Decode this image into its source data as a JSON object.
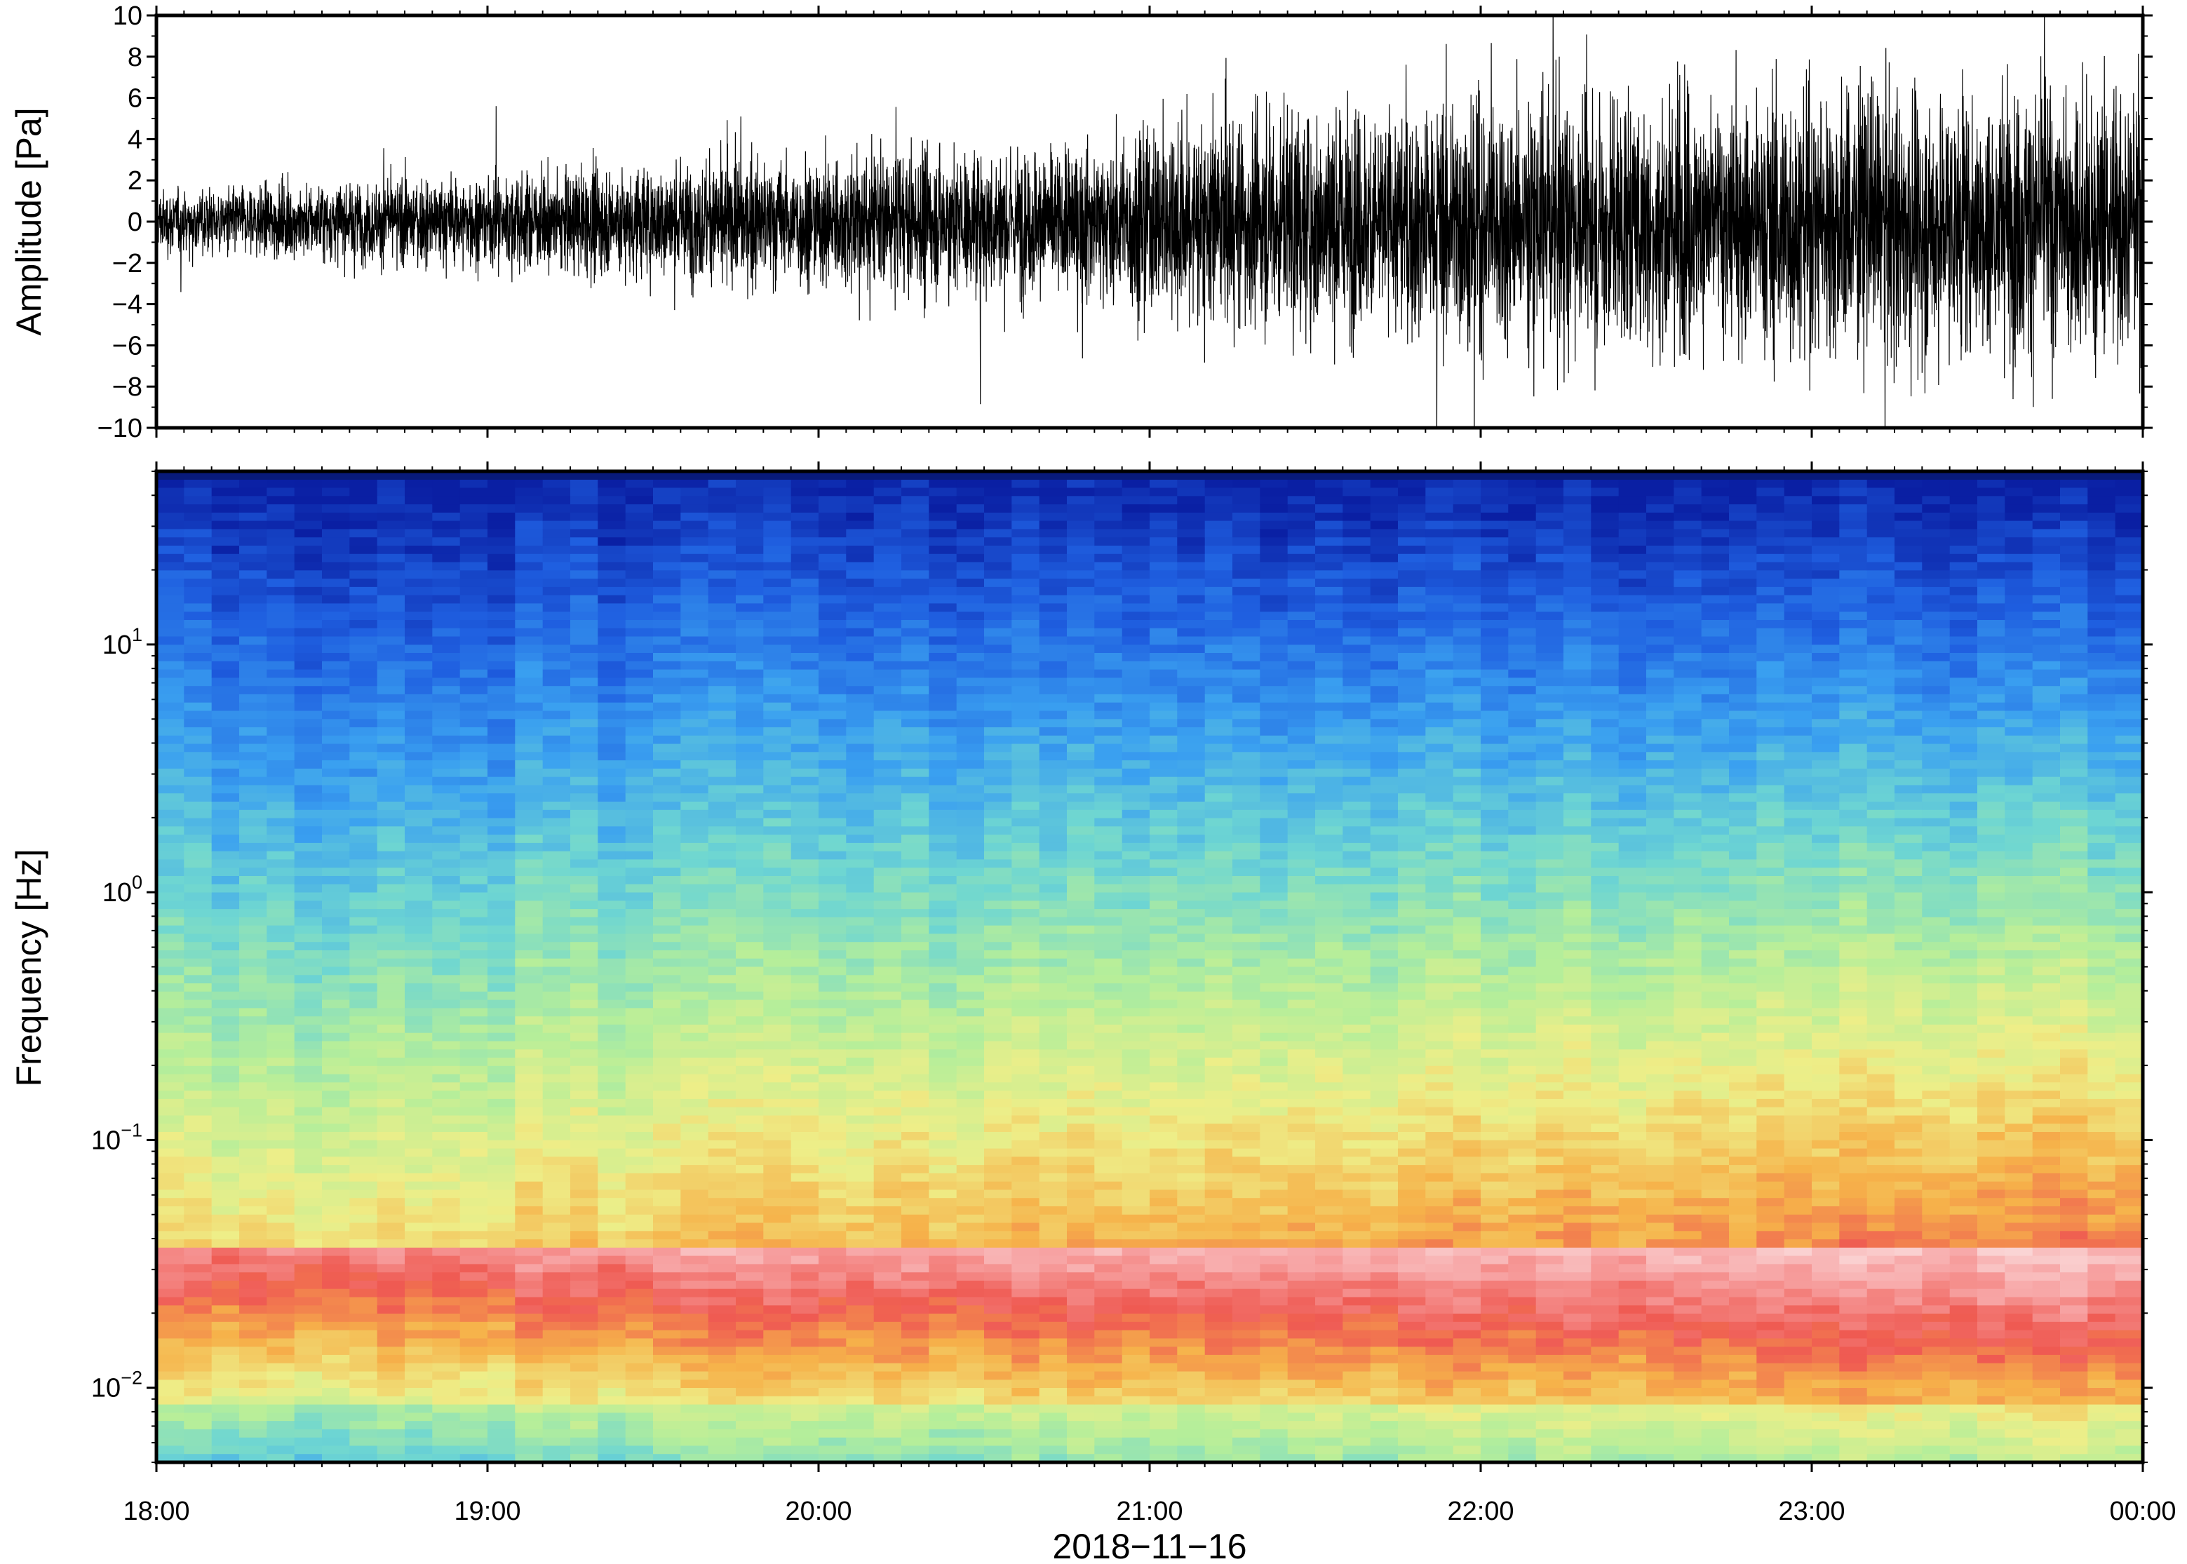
{
  "chart_data": [
    {
      "type": "line",
      "description_of_series": "infrasound pressure waveform",
      "ylabel": "Amplitude [Pa]",
      "ylim": [
        -10,
        10
      ],
      "yticks": [
        10,
        8,
        6,
        4,
        2,
        0,
        -2,
        -4,
        -6,
        -8,
        -10
      ],
      "ytick_labels": [
        "10",
        "8",
        "6",
        "4",
        "2",
        "0",
        "−2",
        "−4",
        "−6",
        "−8",
        "−10"
      ],
      "xlim_hours": [
        18,
        24
      ],
      "envelope": {
        "hours": [
          18.0,
          19.0,
          20.0,
          20.9,
          21.0,
          22.0,
          23.0,
          24.0
        ],
        "amplitude": [
          1.2,
          1.8,
          2.6,
          3.0,
          3.9,
          4.8,
          5.2,
          5.3
        ]
      },
      "color": "#000000"
    },
    {
      "type": "heatmap",
      "ylabel": "Frequency [Hz]",
      "yscale": "log",
      "ylim": [
        0.005,
        50
      ],
      "yticks": [
        10,
        1,
        0.1,
        0.01
      ],
      "ytick_labels": [
        {
          "base": "10",
          "exp": "1"
        },
        {
          "base": "10",
          "exp": "0"
        },
        {
          "base": "10",
          "exp": "−1"
        },
        {
          "base": "10",
          "exp": "−2"
        }
      ],
      "xlim_hours": [
        18,
        24
      ],
      "colormap": [
        "#0a1fa3",
        "#1f5fe0",
        "#3aa0f0",
        "#6ed6d2",
        "#b5ee9a",
        "#eeee88",
        "#f6b24a",
        "#ef5a52",
        "#f7a3a3",
        "#fbe2e2"
      ]
    }
  ],
  "xaxis": {
    "ticks_hours": [
      18,
      19,
      20,
      21,
      22,
      23,
      24
    ],
    "tick_labels": [
      "18:00",
      "19:00",
      "20:00",
      "21:00",
      "22:00",
      "23:00",
      "00:00"
    ],
    "xlabel": "2018−11−16"
  }
}
